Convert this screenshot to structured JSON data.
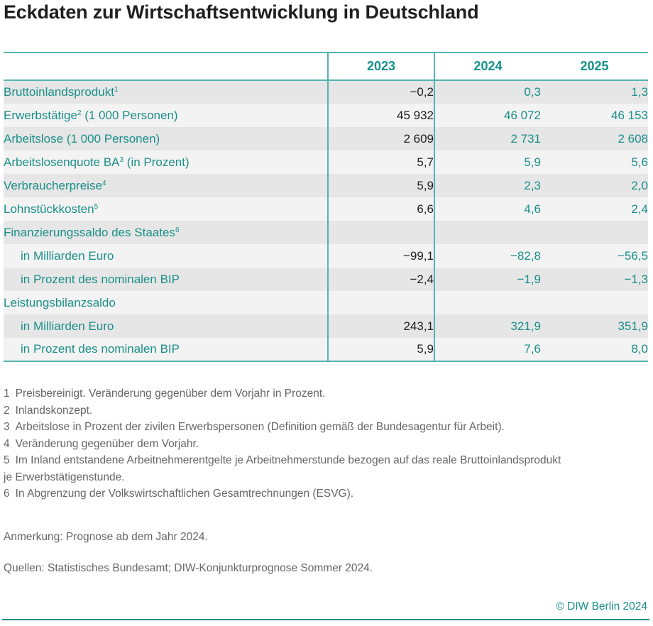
{
  "title": "Eckdaten zur Wirtschaftsentwicklung in Deutschland",
  "table": {
    "columns": [
      "",
      "2023",
      "2024",
      "2025"
    ],
    "rows": [
      {
        "label": "Bruttoinlandsprodukt",
        "footnote": "1",
        "indent": false,
        "values": [
          "−0,2",
          "0,3",
          "1,3"
        ]
      },
      {
        "label": "Erwerbstätige",
        "footnote": "2",
        "suffix": " (1 000 Personen)",
        "indent": false,
        "values": [
          "45 932",
          "46 072",
          "46 153"
        ]
      },
      {
        "label": "Arbeitslose (1 000 Personen)",
        "footnote": "",
        "indent": false,
        "values": [
          "2 609",
          "2 731",
          "2 608"
        ]
      },
      {
        "label": "Arbeitslosenquote BA",
        "footnote": "3",
        "suffix": " (in Prozent)",
        "indent": false,
        "values": [
          "5,7",
          "5,9",
          "5,6"
        ]
      },
      {
        "label": "Verbraucherpreise",
        "footnote": "4",
        "indent": false,
        "values": [
          "5,9",
          "2,3",
          "2,0"
        ]
      },
      {
        "label": "Lohnstückkosten",
        "footnote": "5",
        "indent": false,
        "values": [
          "6,6",
          "4,6",
          "2,4"
        ]
      },
      {
        "label": "Finanzierungssaldo des Staates",
        "footnote": "6",
        "indent": false,
        "values": [
          "",
          "",
          ""
        ]
      },
      {
        "label": "in Milliarden Euro",
        "footnote": "",
        "indent": true,
        "values": [
          "−99,1",
          "−82,8",
          "−56,5"
        ]
      },
      {
        "label": "in Prozent des nominalen BIP",
        "footnote": "",
        "indent": true,
        "values": [
          "−2,4",
          "−1,9",
          "−1,3"
        ]
      },
      {
        "label": "Leistungsbilanzsaldo",
        "footnote": "",
        "indent": false,
        "values": [
          "",
          "",
          ""
        ]
      },
      {
        "label": "in Milliarden Euro",
        "footnote": "",
        "indent": true,
        "values": [
          "243,1",
          "321,9",
          "351,9"
        ]
      },
      {
        "label": "in Prozent des nominalen BIP",
        "footnote": "",
        "indent": true,
        "values": [
          "5,9",
          "7,6",
          "8,0"
        ]
      }
    ]
  },
  "footnotes": [
    {
      "num": "1",
      "text": "Preisbereinigt. Veränderung gegenüber dem Vorjahr in Prozent."
    },
    {
      "num": "2",
      "text": "Inlandskonzept."
    },
    {
      "num": "3",
      "text": "Arbeitslose in Prozent der zivilen Erwerbspersonen (Definition gemäß der Bundesagentur für Arbeit)."
    },
    {
      "num": "4",
      "text": "Veränderung gegenüber dem Vorjahr."
    },
    {
      "num": "5",
      "text": "Im Inland entstandene Arbeitnehmerentgelte je Arbeitnehmerstunde bezogen auf das reale Bruttoinlandsprodukt",
      "continuation": "je Erwerbstätigenstunde."
    },
    {
      "num": "6",
      "text": "In Abgrenzung der Volkswirtschaftlichen Gesamtrechnungen (ESVG)."
    }
  ],
  "remark": "Anmerkung: Prognose ab dem Jahr 2024.",
  "sources": "Quellen: Statistisches Bundesamt; DIW-Konjunkturprognose Sommer 2024.",
  "copyright": "© DIW Berlin 2024"
}
